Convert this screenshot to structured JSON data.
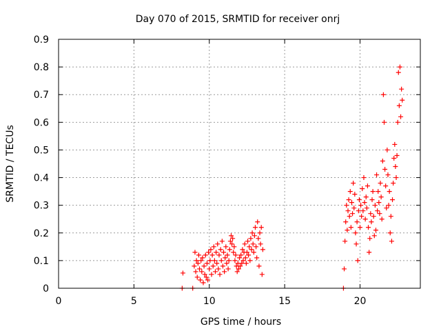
{
  "chart_data": {
    "type": "scatter",
    "title": "Day 070 of 2015, SRMTID for receiver onrj",
    "xlabel": "GPS time / hours",
    "ylabel": "SRMTID / TECUs",
    "xlim": [
      0,
      24
    ],
    "ylim": [
      0,
      0.9
    ],
    "xticks": [
      0,
      5,
      10,
      15,
      20
    ],
    "yticks": [
      0,
      0.1,
      0.2,
      0.3,
      0.4,
      0.5,
      0.6,
      0.7,
      0.8,
      0.9
    ],
    "grid": true,
    "marker": "+",
    "series": [
      {
        "name": "SRMTID",
        "color": "#ff0000",
        "points": [
          [
            8.2,
            0.0
          ],
          [
            8.25,
            0.055
          ],
          [
            8.9,
            0.0
          ],
          [
            9.0,
            0.08
          ],
          [
            9.05,
            0.13
          ],
          [
            9.1,
            0.06
          ],
          [
            9.15,
            0.1
          ],
          [
            9.2,
            0.04
          ],
          [
            9.25,
            0.09
          ],
          [
            9.3,
            0.12
          ],
          [
            9.35,
            0.07
          ],
          [
            9.4,
            0.03
          ],
          [
            9.45,
            0.1
          ],
          [
            9.5,
            0.06
          ],
          [
            9.55,
            0.11
          ],
          [
            9.6,
            0.02
          ],
          [
            9.65,
            0.08
          ],
          [
            9.7,
            0.05
          ],
          [
            9.75,
            0.12
          ],
          [
            9.8,
            0.04
          ],
          [
            9.85,
            0.09
          ],
          [
            9.9,
            0.03
          ],
          [
            9.95,
            0.13
          ],
          [
            10.0,
            0.07
          ],
          [
            10.05,
            0.1
          ],
          [
            10.1,
            0.14
          ],
          [
            10.15,
            0.05
          ],
          [
            10.2,
            0.12
          ],
          [
            10.25,
            0.08
          ],
          [
            10.3,
            0.15
          ],
          [
            10.35,
            0.1
          ],
          [
            10.4,
            0.06
          ],
          [
            10.45,
            0.13
          ],
          [
            10.5,
            0.09
          ],
          [
            10.55,
            0.16
          ],
          [
            10.6,
            0.07
          ],
          [
            10.65,
            0.12
          ],
          [
            10.7,
            0.05
          ],
          [
            10.75,
            0.14
          ],
          [
            10.8,
            0.1
          ],
          [
            10.85,
            0.17
          ],
          [
            10.9,
            0.08
          ],
          [
            10.95,
            0.13
          ],
          [
            11.0,
            0.06
          ],
          [
            11.05,
            0.11
          ],
          [
            11.1,
            0.15
          ],
          [
            11.15,
            0.09
          ],
          [
            11.2,
            0.12
          ],
          [
            11.25,
            0.07
          ],
          [
            11.3,
            0.1
          ],
          [
            11.35,
            0.14
          ],
          [
            11.4,
            0.17
          ],
          [
            11.45,
            0.19
          ],
          [
            11.5,
            0.16
          ],
          [
            11.55,
            0.18
          ],
          [
            11.6,
            0.13
          ],
          [
            11.65,
            0.15
          ],
          [
            11.7,
            0.1
          ],
          [
            11.75,
            0.12
          ],
          [
            11.8,
            0.08
          ],
          [
            11.85,
            0.06
          ],
          [
            11.9,
            0.09
          ],
          [
            11.95,
            0.07
          ],
          [
            12.0,
            0.11
          ],
          [
            12.05,
            0.08
          ],
          [
            12.1,
            0.12
          ],
          [
            12.15,
            0.09
          ],
          [
            12.2,
            0.14
          ],
          [
            12.25,
            0.1
          ],
          [
            12.3,
            0.13
          ],
          [
            12.35,
            0.16
          ],
          [
            12.4,
            0.11
          ],
          [
            12.45,
            0.09
          ],
          [
            12.5,
            0.13
          ],
          [
            12.55,
            0.17
          ],
          [
            12.6,
            0.12
          ],
          [
            12.65,
            0.15
          ],
          [
            12.7,
            0.1
          ],
          [
            12.75,
            0.18
          ],
          [
            12.8,
            0.14
          ],
          [
            12.85,
            0.2
          ],
          [
            12.9,
            0.16
          ],
          [
            12.95,
            0.13
          ],
          [
            13.0,
            0.19
          ],
          [
            13.05,
            0.22
          ],
          [
            13.1,
            0.15
          ],
          [
            13.15,
            0.11
          ],
          [
            13.2,
            0.24
          ],
          [
            13.25,
            0.18
          ],
          [
            13.3,
            0.08
          ],
          [
            13.35,
            0.2
          ],
          [
            13.4,
            0.16
          ],
          [
            13.45,
            0.22
          ],
          [
            13.5,
            0.05
          ],
          [
            13.55,
            0.14
          ],
          [
            18.9,
            0.0
          ],
          [
            18.95,
            0.07
          ],
          [
            19.0,
            0.17
          ],
          [
            19.05,
            0.24
          ],
          [
            19.1,
            0.3
          ],
          [
            19.15,
            0.21
          ],
          [
            19.2,
            0.28
          ],
          [
            19.25,
            0.32
          ],
          [
            19.3,
            0.26
          ],
          [
            19.35,
            0.35
          ],
          [
            19.4,
            0.22
          ],
          [
            19.45,
            0.31
          ],
          [
            19.5,
            0.27
          ],
          [
            19.55,
            0.38
          ],
          [
            19.6,
            0.29
          ],
          [
            19.65,
            0.34
          ],
          [
            19.7,
            0.2
          ],
          [
            19.75,
            0.16
          ],
          [
            19.8,
            0.24
          ],
          [
            19.85,
            0.1
          ],
          [
            19.9,
            0.28
          ],
          [
            19.95,
            0.32
          ],
          [
            20.0,
            0.22
          ],
          [
            20.05,
            0.3
          ],
          [
            20.1,
            0.26
          ],
          [
            20.15,
            0.36
          ],
          [
            20.2,
            0.28
          ],
          [
            20.25,
            0.4
          ],
          [
            20.3,
            0.31
          ],
          [
            20.35,
            0.25
          ],
          [
            20.4,
            0.33
          ],
          [
            20.45,
            0.29
          ],
          [
            20.5,
            0.37
          ],
          [
            20.55,
            0.22
          ],
          [
            20.6,
            0.13
          ],
          [
            20.65,
            0.18
          ],
          [
            20.7,
            0.27
          ],
          [
            20.75,
            0.24
          ],
          [
            20.8,
            0.32
          ],
          [
            20.85,
            0.35
          ],
          [
            20.9,
            0.26
          ],
          [
            20.95,
            0.19
          ],
          [
            21.0,
            0.3
          ],
          [
            21.05,
            0.21
          ],
          [
            21.1,
            0.41
          ],
          [
            21.15,
            0.28
          ],
          [
            21.2,
            0.35
          ],
          [
            21.25,
            0.31
          ],
          [
            21.3,
            0.27
          ],
          [
            21.35,
            0.38
          ],
          [
            21.4,
            0.33
          ],
          [
            21.45,
            0.25
          ],
          [
            21.5,
            0.46
          ],
          [
            21.55,
            0.7
          ],
          [
            21.6,
            0.6
          ],
          [
            21.65,
            0.43
          ],
          [
            21.7,
            0.37
          ],
          [
            21.75,
            0.29
          ],
          [
            21.8,
            0.5
          ],
          [
            21.85,
            0.41
          ],
          [
            21.9,
            0.3
          ],
          [
            21.95,
            0.35
          ],
          [
            22.0,
            0.2
          ],
          [
            22.05,
            0.26
          ],
          [
            22.1,
            0.17
          ],
          [
            22.15,
            0.32
          ],
          [
            22.2,
            0.38
          ],
          [
            22.25,
            0.47
          ],
          [
            22.3,
            0.52
          ],
          [
            22.35,
            0.44
          ],
          [
            22.4,
            0.4
          ],
          [
            22.45,
            0.48
          ],
          [
            22.5,
            0.6
          ],
          [
            22.55,
            0.78
          ],
          [
            22.6,
            0.66
          ],
          [
            22.65,
            0.8
          ],
          [
            22.7,
            0.62
          ],
          [
            22.75,
            0.72
          ],
          [
            22.8,
            0.68
          ]
        ]
      }
    ]
  }
}
